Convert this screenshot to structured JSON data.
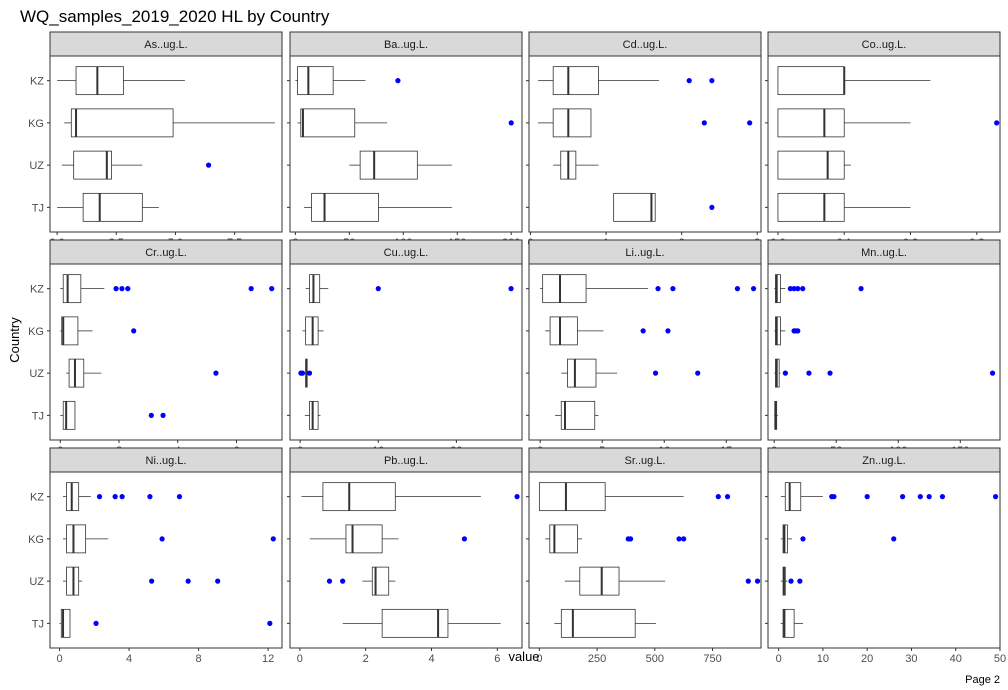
{
  "title": "WQ_samples_2019_2020 HL by Country",
  "footer": "Page 2",
  "chart_data": {
    "type": "boxplot",
    "facet_layout": "3 rows x 4 columns, free x scales",
    "xlabel": "value",
    "ylabel": "Country",
    "categories": [
      "KZ",
      "KG",
      "UZ",
      "TJ"
    ],
    "outlier_color": "#0000ff",
    "grid": false,
    "panels": [
      {
        "title": "As..ug.L.",
        "xlim": [
          -0.3,
          9.5
        ],
        "ticks": [
          0,
          2.5,
          5,
          7.5
        ],
        "tick_labels": [
          "0.0",
          "2.5",
          "5.0",
          "7.5"
        ],
        "boxes": {
          "KZ": {
            "min": 0,
            "q1": 0.8,
            "median": 1.7,
            "q3": 2.8,
            "max": 5.4,
            "outliers": []
          },
          "KG": {
            "min": 0.3,
            "q1": 0.6,
            "median": 0.8,
            "q3": 4.9,
            "max": 9.2,
            "outliers": []
          },
          "UZ": {
            "min": 0.2,
            "q1": 0.7,
            "median": 2.1,
            "q3": 2.3,
            "max": 3.6,
            "outliers": [
              6.4
            ]
          },
          "TJ": {
            "min": 0,
            "q1": 1.1,
            "median": 1.8,
            "q3": 3.6,
            "max": 4.3,
            "outliers": []
          }
        }
      },
      {
        "title": "Ba..ug.L.",
        "xlim": [
          -5,
          210
        ],
        "ticks": [
          0,
          50,
          100,
          150,
          200
        ],
        "tick_labels": [
          "0",
          "50",
          "100",
          "150",
          "200"
        ],
        "boxes": {
          "KZ": {
            "min": 0,
            "q1": 2,
            "median": 12,
            "q3": 35,
            "max": 65,
            "outliers": [
              95
            ]
          },
          "KG": {
            "min": 2,
            "q1": 5,
            "median": 7,
            "q3": 55,
            "max": 85,
            "outliers": [
              200
            ]
          },
          "UZ": {
            "min": 50,
            "q1": 60,
            "median": 73,
            "q3": 113,
            "max": 145,
            "outliers": []
          },
          "TJ": {
            "min": 8,
            "q1": 15,
            "median": 27,
            "q3": 77,
            "max": 145,
            "outliers": []
          }
        }
      },
      {
        "title": "Cd..ug.L.",
        "xlim": [
          -0.02,
          3.05
        ],
        "ticks": [
          0,
          1,
          2,
          3
        ],
        "tick_labels": [
          "0",
          "1",
          "2",
          "3"
        ],
        "boxes": {
          "KZ": {
            "min": 0.1,
            "q1": 0.3,
            "median": 0.5,
            "q3": 0.9,
            "max": 1.7,
            "outliers": [
              2.1,
              2.4
            ]
          },
          "KG": {
            "min": 0.1,
            "q1": 0.3,
            "median": 0.5,
            "q3": 0.8,
            "max": 0.8,
            "outliers": [
              2.3,
              2.9
            ]
          },
          "UZ": {
            "min": 0.3,
            "q1": 0.4,
            "median": 0.5,
            "q3": 0.6,
            "max": 0.9,
            "outliers": []
          },
          "TJ": {
            "min": 1.1,
            "q1": 1.1,
            "median": 1.6,
            "q3": 1.65,
            "max": 1.65,
            "outliers": [
              2.4
            ]
          }
        }
      },
      {
        "title": "Co..ug.L.",
        "xlim": [
          -0.015,
          0.335
        ],
        "ticks": [
          0,
          0.1,
          0.2,
          0.3
        ],
        "tick_labels": [
          "0.0",
          "0.1",
          "0.2",
          "0.3"
        ],
        "boxes": {
          "KZ": {
            "min": 0,
            "q1": 0,
            "median": 0.1,
            "q3": 0.1,
            "max": 0.23,
            "outliers": []
          },
          "KG": {
            "min": 0,
            "q1": 0,
            "median": 0.07,
            "q3": 0.1,
            "max": 0.2,
            "outliers": [
              0.33
            ]
          },
          "UZ": {
            "min": 0,
            "q1": 0,
            "median": 0.075,
            "q3": 0.1,
            "max": 0.11,
            "outliers": []
          },
          "TJ": {
            "min": 0,
            "q1": 0,
            "median": 0.07,
            "q3": 0.1,
            "max": 0.2,
            "outliers": []
          }
        }
      },
      {
        "title": "Cr..ug.L.",
        "xlim": [
          -0.35,
          7.55
        ],
        "ticks": [
          0,
          2,
          4,
          6
        ],
        "tick_labels": [
          "0",
          "2",
          "4",
          "6"
        ],
        "boxes": {
          "KZ": {
            "min": 0,
            "q1": 0.1,
            "median": 0.25,
            "q3": 0.7,
            "max": 1.5,
            "outliers": [
              1.9,
              2.1,
              2.3,
              6.5,
              7.2
            ]
          },
          "KG": {
            "min": 0,
            "q1": 0.05,
            "median": 0.1,
            "q3": 0.6,
            "max": 1.1,
            "outliers": [
              2.5
            ]
          },
          "UZ": {
            "min": 0.2,
            "q1": 0.3,
            "median": 0.5,
            "q3": 0.8,
            "max": 1.4,
            "outliers": [
              5.3
            ]
          },
          "TJ": {
            "min": 0,
            "q1": 0.1,
            "median": 0.2,
            "q3": 0.5,
            "max": 0.5,
            "outliers": [
              3.1,
              3.5
            ]
          }
        }
      },
      {
        "title": "Cu..ug.L.",
        "xlim": [
          -1.3,
          28.4
        ],
        "ticks": [
          0,
          10,
          20
        ],
        "tick_labels": [
          "0",
          "10",
          "20"
        ],
        "boxes": {
          "KZ": {
            "min": 0.7,
            "q1": 1.2,
            "median": 1.7,
            "q3": 2.5,
            "max": 3.6,
            "outliers": [
              10,
              27
            ]
          },
          "KG": {
            "min": 0.3,
            "q1": 0.7,
            "median": 1.6,
            "q3": 2.3,
            "max": 3,
            "outliers": []
          },
          "UZ": {
            "min": 0.7,
            "q1": 0.7,
            "median": 0.8,
            "q3": 0.9,
            "max": 1,
            "outliers": [
              0.1,
              0.3,
              1.2
            ]
          },
          "TJ": {
            "min": 0.6,
            "q1": 1.2,
            "median": 1.6,
            "q3": 2.3,
            "max": 2.6,
            "outliers": []
          }
        }
      },
      {
        "title": "Li..ug.L.",
        "xlim": [
          -0.9,
          17.8
        ],
        "ticks": [
          0,
          5,
          10,
          15
        ],
        "tick_labels": [
          "0",
          "5",
          "10",
          "15"
        ],
        "boxes": {
          "KZ": {
            "min": 0,
            "q1": 0.2,
            "median": 1.6,
            "q3": 3.7,
            "max": 8.7,
            "outliers": [
              9.5,
              10.7,
              15.9,
              17.2
            ]
          },
          "KG": {
            "min": 0.4,
            "q1": 0.8,
            "median": 1.6,
            "q3": 3,
            "max": 5.1,
            "outliers": [
              8.3,
              10.3
            ]
          },
          "UZ": {
            "min": 1.7,
            "q1": 2.2,
            "median": 2.8,
            "q3": 4.5,
            "max": 6.2,
            "outliers": [
              9.3,
              12.7
            ]
          },
          "TJ": {
            "min": 1.2,
            "q1": 1.7,
            "median": 2,
            "q3": 4.4,
            "max": 4.7,
            "outliers": []
          }
        }
      },
      {
        "title": "Mn..ug.L.",
        "xlim": [
          -5,
          182
        ],
        "ticks": [
          0,
          50,
          100,
          150
        ],
        "tick_labels": [
          "0",
          "50",
          "100",
          "150"
        ],
        "boxes": {
          "KZ": {
            "min": 0,
            "q1": 1,
            "median": 2,
            "q3": 5,
            "max": 9,
            "outliers": [
              13,
              16,
              19,
              23,
              70
            ]
          },
          "KG": {
            "min": 0,
            "q1": 1,
            "median": 2,
            "q3": 5,
            "max": 9,
            "outliers": [
              16,
              17,
              19
            ]
          },
          "UZ": {
            "min": 0,
            "q1": 1,
            "median": 2,
            "q3": 4,
            "max": 5,
            "outliers": [
              9,
              28,
              45,
              176
            ]
          },
          "TJ": {
            "min": 0,
            "q1": 0.5,
            "median": 1,
            "q3": 2,
            "max": 3,
            "outliers": []
          }
        }
      },
      {
        "title": "Ni..ug.L.",
        "xlim": [
          -0.55,
          12.8
        ],
        "ticks": [
          0,
          4,
          8,
          12
        ],
        "tick_labels": [
          "0",
          "4",
          "8",
          "12"
        ],
        "boxes": {
          "KZ": {
            "min": 0.2,
            "q1": 0.4,
            "median": 0.7,
            "q3": 1.1,
            "max": 1.8,
            "outliers": [
              2.3,
              3.2,
              3.6,
              5.2,
              6.9
            ]
          },
          "KG": {
            "min": 0.2,
            "q1": 0.4,
            "median": 0.8,
            "q3": 1.5,
            "max": 2.8,
            "outliers": [
              5.9,
              12.3
            ]
          },
          "UZ": {
            "min": 0.2,
            "q1": 0.4,
            "median": 0.8,
            "q3": 1.1,
            "max": 1.3,
            "outliers": [
              5.3,
              7.4,
              9.1
            ]
          },
          "TJ": {
            "min": 0,
            "q1": 0.1,
            "median": 0.2,
            "q3": 0.6,
            "max": 0.6,
            "outliers": [
              2.1,
              12.1
            ]
          }
        }
      },
      {
        "title": "Pb..ug.L.",
        "xlim": [
          -0.3,
          6.75
        ],
        "ticks": [
          0,
          2,
          4,
          6
        ],
        "tick_labels": [
          "0",
          "2",
          "4",
          "6"
        ],
        "boxes": {
          "KZ": {
            "min": 0.05,
            "q1": 0.7,
            "median": 1.5,
            "q3": 2.9,
            "max": 5.5,
            "outliers": [
              6.6
            ]
          },
          "KG": {
            "min": 0.3,
            "q1": 1.4,
            "median": 1.6,
            "q3": 2.5,
            "max": 3,
            "outliers": [
              5
            ]
          },
          "UZ": {
            "min": 1.9,
            "q1": 2.2,
            "median": 2.3,
            "q3": 2.7,
            "max": 2.9,
            "outliers": [
              0.9,
              1.3
            ]
          },
          "TJ": {
            "min": 1.3,
            "q1": 2.5,
            "median": 4.2,
            "q3": 4.5,
            "max": 6.1,
            "outliers": []
          }
        }
      },
      {
        "title": "Sr..ug.L.",
        "xlim": [
          -45,
          960
        ],
        "ticks": [
          0,
          250,
          500,
          750
        ],
        "tick_labels": [
          "0",
          "250",
          "500",
          "750"
        ],
        "boxes": {
          "KZ": {
            "min": 0,
            "q1": 0,
            "median": 115,
            "q3": 285,
            "max": 625,
            "outliers": [
              775,
              815
            ]
          },
          "KG": {
            "min": 25,
            "q1": 45,
            "median": 65,
            "q3": 165,
            "max": 185,
            "outliers": [
              385,
              395,
              605,
              625
            ]
          },
          "UZ": {
            "min": 110,
            "q1": 175,
            "median": 270,
            "q3": 345,
            "max": 545,
            "outliers": [
              905,
              945
            ]
          },
          "TJ": {
            "min": 65,
            "q1": 95,
            "median": 145,
            "q3": 415,
            "max": 505,
            "outliers": []
          }
        }
      },
      {
        "title": "Zn..ug.L.",
        "xlim": [
          -2.4,
          50
        ],
        "ticks": [
          0,
          10,
          20,
          30,
          40,
          50
        ],
        "tick_labels": [
          "0",
          "10",
          "20",
          "30",
          "40",
          "50"
        ],
        "boxes": {
          "KZ": {
            "min": 0.5,
            "q1": 1.5,
            "median": 2.5,
            "q3": 5,
            "max": 10,
            "outliers": [
              12,
              12.5,
              20,
              28,
              32,
              34,
              37,
              49
            ]
          },
          "KG": {
            "min": 0.5,
            "q1": 1,
            "median": 1.3,
            "q3": 2,
            "max": 3,
            "outliers": [
              5.5,
              26
            ]
          },
          "UZ": {
            "min": 0.5,
            "q1": 1,
            "median": 1.2,
            "q3": 1.5,
            "max": 2,
            "outliers": [
              2.8,
              4.8
            ]
          },
          "TJ": {
            "min": 0.5,
            "q1": 1,
            "median": 1.3,
            "q3": 3.5,
            "max": 5.5,
            "outliers": []
          }
        }
      }
    ]
  }
}
